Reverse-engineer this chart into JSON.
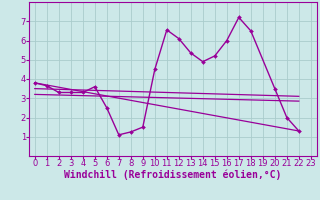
{
  "background_color": "#cce8e8",
  "grid_color": "#aacccc",
  "line_color": "#990099",
  "xlabel": "Windchill (Refroidissement éolien,°C)",
  "xlabel_fontsize": 7,
  "xlim": [
    -0.5,
    23.5
  ],
  "ylim": [
    0,
    8
  ],
  "xticks": [
    0,
    1,
    2,
    3,
    4,
    5,
    6,
    7,
    8,
    9,
    10,
    11,
    12,
    13,
    14,
    15,
    16,
    17,
    18,
    19,
    20,
    21,
    22,
    23
  ],
  "yticks": [
    1,
    2,
    3,
    4,
    5,
    6,
    7
  ],
  "tick_fontsize": 6,
  "main_series": {
    "x": [
      0,
      1,
      2,
      3,
      4,
      5,
      6,
      7,
      8,
      9,
      10,
      11,
      12,
      13,
      14,
      15,
      16,
      17,
      18,
      20,
      21,
      22
    ],
    "y": [
      3.8,
      3.65,
      3.3,
      3.3,
      3.3,
      3.6,
      2.5,
      1.1,
      1.25,
      1.5,
      4.5,
      6.55,
      6.1,
      5.35,
      4.9,
      5.2,
      6.0,
      7.2,
      6.5,
      3.5,
      2.0,
      1.3
    ]
  },
  "trend_lines": [
    {
      "x": [
        0,
        22
      ],
      "y": [
        3.8,
        1.3
      ]
    },
    {
      "x": [
        0,
        22
      ],
      "y": [
        3.5,
        3.1
      ]
    },
    {
      "x": [
        0,
        22
      ],
      "y": [
        3.2,
        2.85
      ]
    }
  ]
}
